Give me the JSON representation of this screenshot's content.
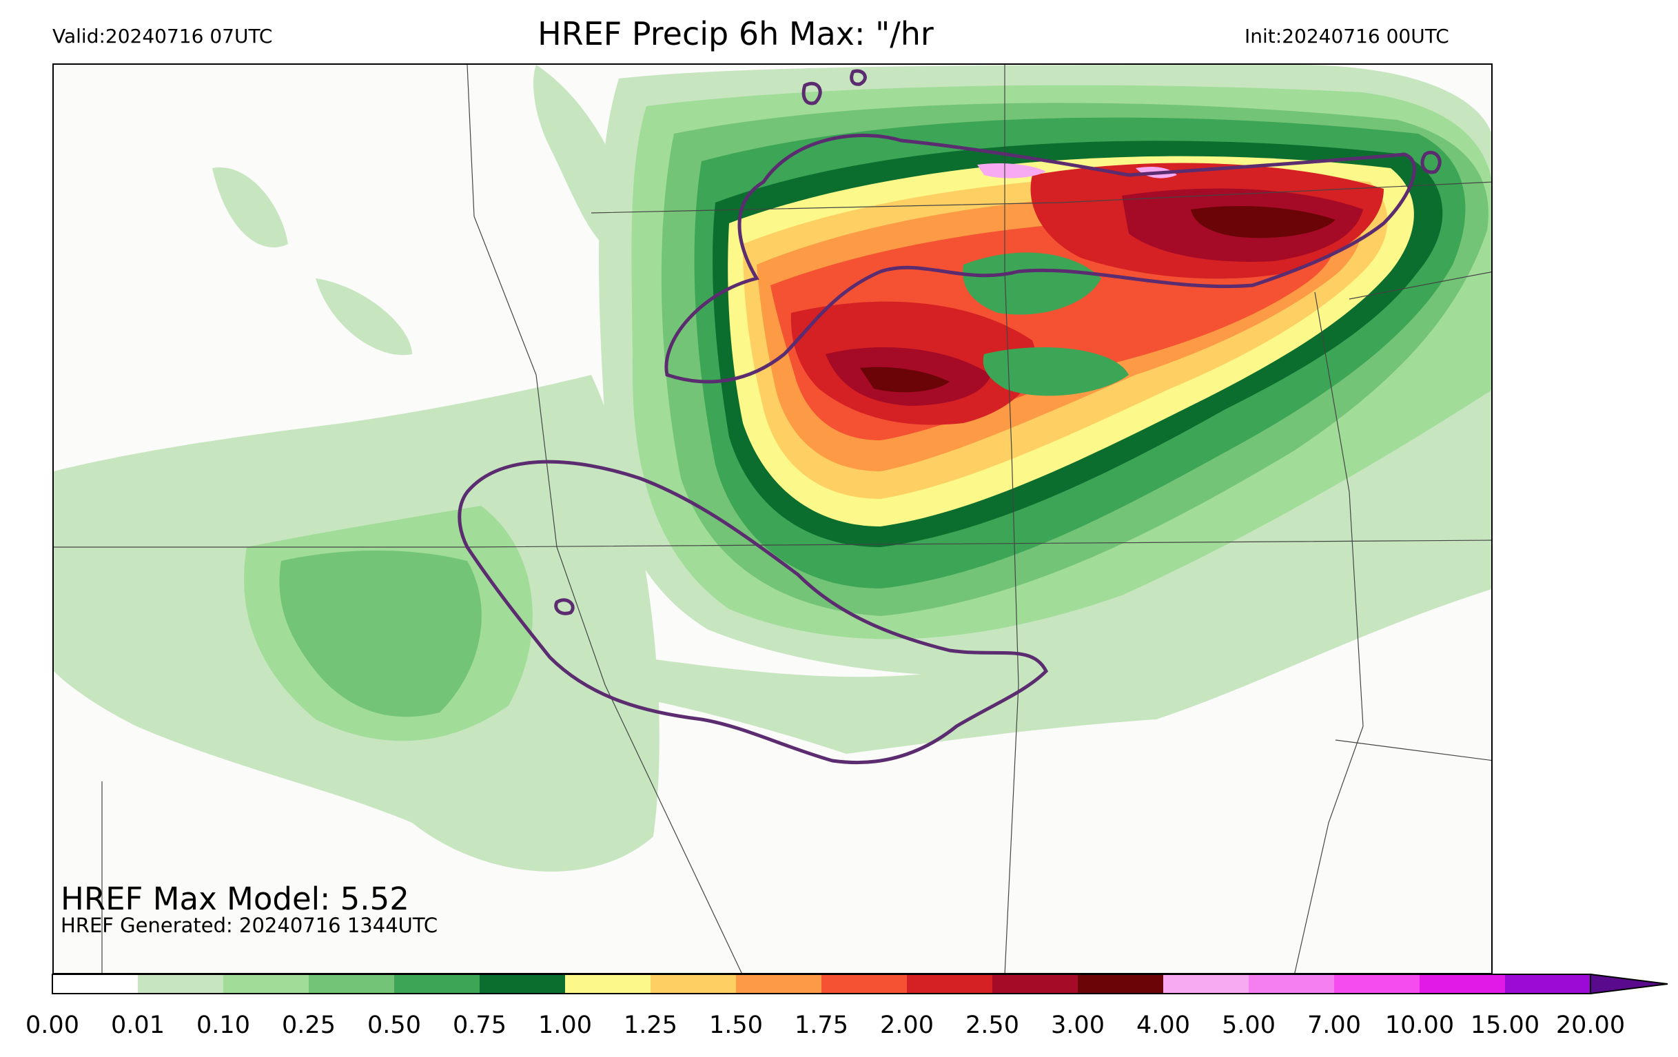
{
  "header": {
    "valid": "Valid:20240716 07UTC",
    "title": "HREF Precip 6h Max: \"/hr",
    "init": "Init:20240716 00UTC"
  },
  "annotations": {
    "max_model": "HREF Max Model: 5.52",
    "generated": "HREF Generated: 20240716 1344UTC"
  },
  "colorbar": {
    "ticks": [
      "0.00",
      "0.01",
      "0.10",
      "0.25",
      "0.50",
      "0.75",
      "1.00",
      "1.25",
      "1.50",
      "1.75",
      "2.00",
      "2.50",
      "3.00",
      "4.00",
      "5.00",
      "7.00",
      "10.00",
      "15.00",
      "20.00"
    ],
    "colors": [
      "#ffffff",
      "#c7e6c0",
      "#a1dc99",
      "#74c477",
      "#3ca556",
      "#0b6e2e",
      "#fdf88a",
      "#fed063",
      "#fd9a45",
      "#f45232",
      "#d52024",
      "#a50a26",
      "#6b0406",
      "#f7a9f2",
      "#f57ef0",
      "#f54cef",
      "#e11ae8",
      "#9c0bd6"
    ],
    "extend_color": "#5a0a8c"
  },
  "map": {
    "background": "#fbfbf9",
    "outline_color": "#5b2c6f",
    "border_color": "#444444"
  }
}
